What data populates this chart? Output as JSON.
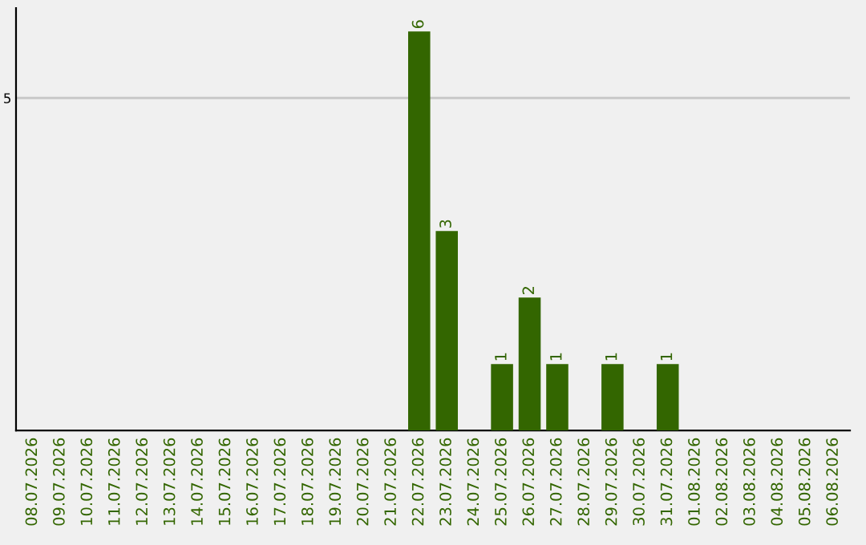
{
  "chart_data": {
    "type": "bar",
    "categories": [
      "08.07.2026",
      "09.07.2026",
      "10.07.2026",
      "11.07.2026",
      "12.07.2026",
      "13.07.2026",
      "14.07.2026",
      "15.07.2026",
      "16.07.2026",
      "17.07.2026",
      "18.07.2026",
      "19.07.2026",
      "20.07.2026",
      "21.07.2026",
      "22.07.2026",
      "23.07.2026",
      "24.07.2026",
      "25.07.2026",
      "26.07.2026",
      "27.07.2026",
      "28.07.2026",
      "29.07.2026",
      "30.07.2026",
      "31.07.2026",
      "01.08.2026",
      "02.08.2026",
      "03.08.2026",
      "04.08.2026",
      "05.08.2026",
      "06.08.2026"
    ],
    "values": [
      null,
      null,
      null,
      null,
      null,
      null,
      null,
      null,
      null,
      null,
      null,
      null,
      null,
      null,
      6,
      3,
      null,
      1,
      2,
      1,
      null,
      1,
      null,
      1,
      null,
      null,
      null,
      null,
      null,
      null
    ],
    "value_labels": [
      null,
      null,
      null,
      null,
      null,
      null,
      null,
      null,
      null,
      null,
      null,
      null,
      null,
      null,
      "6",
      "3",
      null,
      "1",
      "2",
      "1",
      null,
      "1",
      null,
      "1",
      null,
      null,
      null,
      null,
      null,
      null
    ],
    "color": "#336600",
    "ylim": [
      0,
      6.35
    ],
    "yticks": [
      5
    ],
    "grid": "y",
    "legend": false
  }
}
